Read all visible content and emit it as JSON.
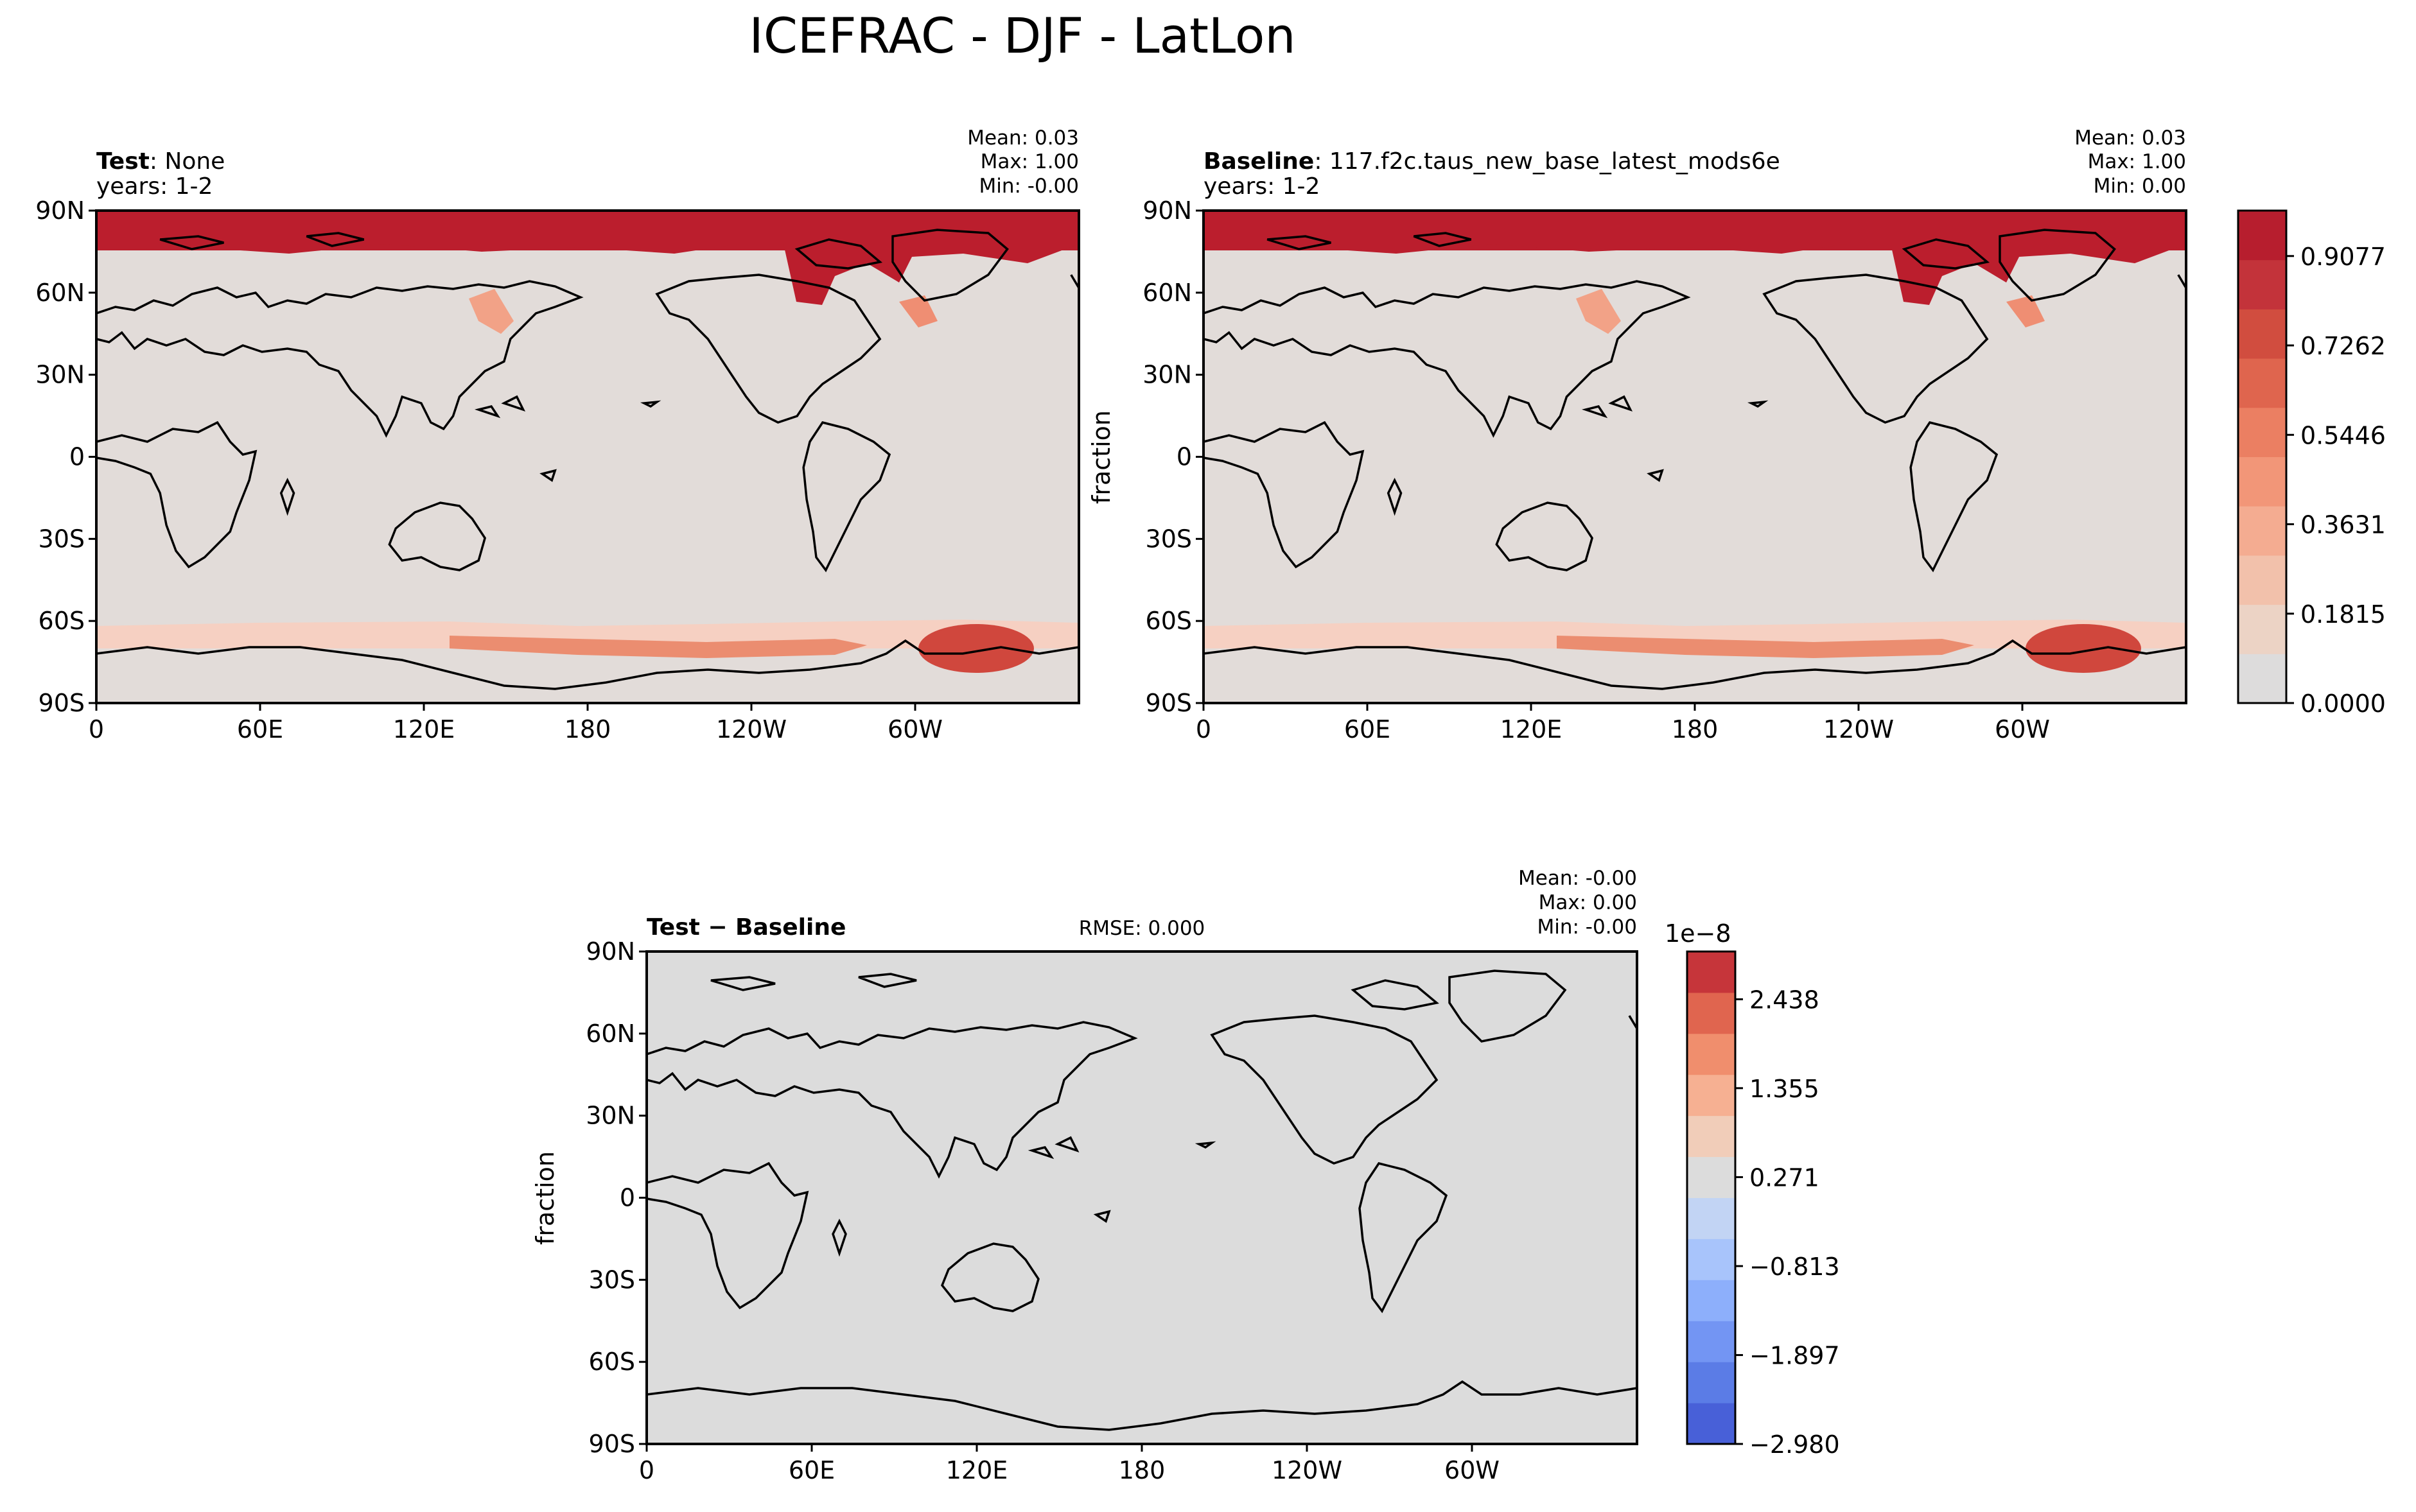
{
  "title": "ICEFRAC - DJF - LatLon",
  "lat_ticks": [
    "90N",
    "60N",
    "30N",
    "0",
    "30S",
    "60S",
    "90S"
  ],
  "lon_ticks": [
    "0",
    "60E",
    "120E",
    "180",
    "120W",
    "60W"
  ],
  "panels": {
    "test": {
      "label_bold": "Test",
      "label_text": ": None",
      "years": "years: 1-2",
      "mean": "Mean:  0.03",
      "max": "Max:  1.00",
      "min": "Min: -0.00"
    },
    "baseline": {
      "label_bold": "Baseline",
      "label_text": ": 117.f2c.taus_new_base_latest_mods6e",
      "years": "years: 1-2",
      "ylabel": "fraction",
      "mean": "Mean:  0.03",
      "max": "Max:  1.00",
      "min": "Min:  0.00"
    },
    "diff": {
      "label_bold": "Test − Baseline",
      "rmse": "RMSE: 0.000",
      "ylabel": "fraction",
      "mean": "Mean: -0.00",
      "max": "Max:  0.00",
      "min": "Min: -0.00"
    }
  },
  "colorbar_main": {
    "ticks": [
      "0.9077",
      "0.7262",
      "0.5446",
      "0.3631",
      "0.1815",
      "0.0000"
    ],
    "colors_bottom_to_top": [
      "#dddcdc",
      "#ecd3c5",
      "#f2c1ab",
      "#f4ac91",
      "#f29678",
      "#eb7f62",
      "#df654e",
      "#d14d3f",
      "#c3333a",
      "#b71e2e"
    ]
  },
  "colorbar_diff": {
    "exponent": "1e−8",
    "ticks": [
      "2.438",
      "1.355",
      "0.271",
      "−0.813",
      "−1.897",
      "−2.980"
    ],
    "colors_bottom_to_top": [
      "#4860d8",
      "#5b7ce6",
      "#7395f3",
      "#8daffb",
      "#a8c4fb",
      "#c2d4f4",
      "#dcdcdc",
      "#f1cdb9",
      "#f6b092",
      "#f08e6d",
      "#e0654f",
      "#c6353a"
    ]
  },
  "colors": {
    "map_background": "#e2dcd9",
    "ice": "#bb1e2d",
    "diff_background": "#dcdcdc"
  }
}
